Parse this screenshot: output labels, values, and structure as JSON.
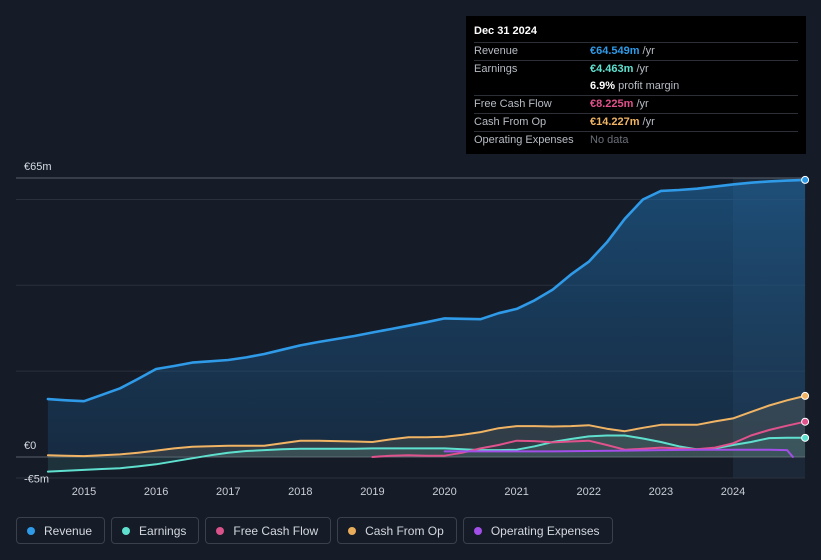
{
  "tooltip": {
    "date": "Dec 31 2024",
    "rows": [
      {
        "label": "Revenue",
        "value": "€64.549m",
        "unit": "/yr",
        "color": "#2f9ae8"
      },
      {
        "label": "Earnings",
        "value": "€4.463m",
        "unit": "/yr",
        "color": "#5fe0cf"
      },
      {
        "label": "",
        "value": "6.9%",
        "unit": "profit margin",
        "color": "#ffffff"
      },
      {
        "label": "Free Cash Flow",
        "value": "€8.225m",
        "unit": "/yr",
        "color": "#e0528c"
      },
      {
        "label": "Cash From Op",
        "value": "€14.227m",
        "unit": "/yr",
        "color": "#f0b464"
      },
      {
        "label": "Operating Expenses",
        "value": "No data",
        "unit": "",
        "color": "#6b7078"
      }
    ]
  },
  "legend": [
    {
      "label": "Revenue",
      "color": "#2f9ae8"
    },
    {
      "label": "Earnings",
      "color": "#5fe0cf"
    },
    {
      "label": "Free Cash Flow",
      "color": "#d9528a"
    },
    {
      "label": "Cash From Op",
      "color": "#e8ac5a"
    },
    {
      "label": "Operating Expenses",
      "color": "#a24ee8"
    }
  ],
  "chart_data": {
    "type": "line",
    "y_unit": "€m",
    "ylim": [
      -5,
      65
    ],
    "y_tick_labels": [
      {
        "value": 65,
        "label": "€65m"
      },
      {
        "value": 0,
        "label": "€0"
      },
      {
        "value": -5,
        "label": "-€5m"
      }
    ],
    "xlim": [
      2014.5,
      2025.0
    ],
    "x_ticks": [
      2015,
      2016,
      2017,
      2018,
      2019,
      2020,
      2021,
      2022,
      2023,
      2024
    ],
    "x_tick_labels": [
      "2015",
      "2016",
      "2017",
      "2018",
      "2019",
      "2020",
      "2021",
      "2022",
      "2023",
      "2024"
    ],
    "highlight_start": 2024.0,
    "series": [
      {
        "name": "Revenue",
        "color": "#2f9ae8",
        "fill": true,
        "points": [
          [
            2014.5,
            13.5
          ],
          [
            2014.75,
            13.2
          ],
          [
            2015.0,
            13.0
          ],
          [
            2015.25,
            14.5
          ],
          [
            2015.5,
            16.0
          ],
          [
            2015.75,
            18.2
          ],
          [
            2016.0,
            20.5
          ],
          [
            2016.25,
            21.2
          ],
          [
            2016.5,
            22.0
          ],
          [
            2016.75,
            22.3
          ],
          [
            2017.0,
            22.6
          ],
          [
            2017.25,
            23.2
          ],
          [
            2017.5,
            24.0
          ],
          [
            2017.75,
            25.0
          ],
          [
            2018.0,
            26.0
          ],
          [
            2018.25,
            26.8
          ],
          [
            2018.5,
            27.5
          ],
          [
            2018.75,
            28.2
          ],
          [
            2019.0,
            29.0
          ],
          [
            2019.25,
            29.8
          ],
          [
            2019.5,
            30.6
          ],
          [
            2019.75,
            31.4
          ],
          [
            2020.0,
            32.3
          ],
          [
            2020.25,
            32.2
          ],
          [
            2020.5,
            32.1
          ],
          [
            2020.75,
            33.5
          ],
          [
            2021.0,
            34.5
          ],
          [
            2021.25,
            36.5
          ],
          [
            2021.5,
            39.0
          ],
          [
            2021.75,
            42.5
          ],
          [
            2022.0,
            45.5
          ],
          [
            2022.25,
            50.0
          ],
          [
            2022.5,
            55.5
          ],
          [
            2022.75,
            60.0
          ],
          [
            2023.0,
            62.0
          ],
          [
            2023.25,
            62.2
          ],
          [
            2023.5,
            62.5
          ],
          [
            2023.75,
            63.0
          ],
          [
            2024.0,
            63.5
          ],
          [
            2024.25,
            63.9
          ],
          [
            2024.5,
            64.2
          ],
          [
            2024.75,
            64.4
          ],
          [
            2025.0,
            64.549
          ]
        ]
      },
      {
        "name": "Earnings",
        "color": "#5fe0cf",
        "fill": true,
        "points": [
          [
            2014.5,
            -3.4
          ],
          [
            2014.75,
            -3.2
          ],
          [
            2015.0,
            -3.0
          ],
          [
            2015.25,
            -2.8
          ],
          [
            2015.5,
            -2.6
          ],
          [
            2015.75,
            -2.2
          ],
          [
            2016.0,
            -1.7
          ],
          [
            2016.25,
            -1.0
          ],
          [
            2016.5,
            -0.3
          ],
          [
            2016.75,
            0.4
          ],
          [
            2017.0,
            1.0
          ],
          [
            2017.25,
            1.4
          ],
          [
            2017.5,
            1.6
          ],
          [
            2017.75,
            1.8
          ],
          [
            2018.0,
            1.9
          ],
          [
            2018.25,
            1.9
          ],
          [
            2018.5,
            1.9
          ],
          [
            2018.75,
            1.9
          ],
          [
            2019.0,
            2.0
          ],
          [
            2019.25,
            2.0
          ],
          [
            2019.5,
            2.0
          ],
          [
            2019.75,
            2.0
          ],
          [
            2020.0,
            2.0
          ],
          [
            2020.25,
            1.8
          ],
          [
            2020.5,
            1.6
          ],
          [
            2020.75,
            1.6
          ],
          [
            2021.0,
            1.7
          ],
          [
            2021.25,
            2.5
          ],
          [
            2021.5,
            3.5
          ],
          [
            2021.75,
            4.2
          ],
          [
            2022.0,
            4.8
          ],
          [
            2022.25,
            5.0
          ],
          [
            2022.5,
            5.0
          ],
          [
            2022.75,
            4.3
          ],
          [
            2023.0,
            3.5
          ],
          [
            2023.25,
            2.5
          ],
          [
            2023.5,
            1.8
          ],
          [
            2023.75,
            2.0
          ],
          [
            2024.0,
            2.8
          ],
          [
            2024.25,
            3.5
          ],
          [
            2024.5,
            4.4
          ],
          [
            2024.75,
            4.463
          ],
          [
            2025.0,
            4.463
          ]
        ]
      },
      {
        "name": "Free Cash Flow",
        "color": "#e0528c",
        "fill": false,
        "points": [
          [
            2019.0,
            0.0
          ],
          [
            2019.25,
            0.3
          ],
          [
            2019.5,
            0.4
          ],
          [
            2019.75,
            0.3
          ],
          [
            2020.0,
            0.3
          ],
          [
            2020.25,
            1.0
          ],
          [
            2020.5,
            2.0
          ],
          [
            2020.75,
            2.8
          ],
          [
            2021.0,
            3.8
          ],
          [
            2021.25,
            3.7
          ],
          [
            2021.5,
            3.4
          ],
          [
            2021.75,
            3.6
          ],
          [
            2022.0,
            3.8
          ],
          [
            2022.25,
            2.8
          ],
          [
            2022.5,
            1.7
          ],
          [
            2022.75,
            1.9
          ],
          [
            2023.0,
            2.2
          ],
          [
            2023.25,
            2.0
          ],
          [
            2023.5,
            1.8
          ],
          [
            2023.75,
            2.2
          ],
          [
            2024.0,
            3.2
          ],
          [
            2024.25,
            5.0
          ],
          [
            2024.5,
            6.3
          ],
          [
            2024.75,
            7.3
          ],
          [
            2025.0,
            8.225
          ]
        ]
      },
      {
        "name": "Cash From Op",
        "color": "#f0b464",
        "fill": true,
        "points": [
          [
            2014.5,
            0.4
          ],
          [
            2014.75,
            0.3
          ],
          [
            2015.0,
            0.2
          ],
          [
            2015.25,
            0.4
          ],
          [
            2015.5,
            0.6
          ],
          [
            2015.75,
            1.0
          ],
          [
            2016.0,
            1.5
          ],
          [
            2016.25,
            2.0
          ],
          [
            2016.5,
            2.4
          ],
          [
            2016.75,
            2.5
          ],
          [
            2017.0,
            2.6
          ],
          [
            2017.25,
            2.6
          ],
          [
            2017.5,
            2.6
          ],
          [
            2017.75,
            3.2
          ],
          [
            2018.0,
            3.8
          ],
          [
            2018.25,
            3.8
          ],
          [
            2018.5,
            3.7
          ],
          [
            2018.75,
            3.6
          ],
          [
            2019.0,
            3.5
          ],
          [
            2019.25,
            4.1
          ],
          [
            2019.5,
            4.6
          ],
          [
            2019.75,
            4.6
          ],
          [
            2020.0,
            4.7
          ],
          [
            2020.25,
            5.2
          ],
          [
            2020.5,
            5.8
          ],
          [
            2020.75,
            6.7
          ],
          [
            2021.0,
            7.2
          ],
          [
            2021.25,
            7.2
          ],
          [
            2021.5,
            7.1
          ],
          [
            2021.75,
            7.2
          ],
          [
            2022.0,
            7.4
          ],
          [
            2022.25,
            6.6
          ],
          [
            2022.5,
            6.0
          ],
          [
            2022.75,
            6.8
          ],
          [
            2023.0,
            7.5
          ],
          [
            2023.25,
            7.5
          ],
          [
            2023.5,
            7.5
          ],
          [
            2023.75,
            8.3
          ],
          [
            2024.0,
            9.0
          ],
          [
            2024.25,
            10.5
          ],
          [
            2024.5,
            12.0
          ],
          [
            2024.75,
            13.2
          ],
          [
            2025.0,
            14.227
          ]
        ]
      },
      {
        "name": "Operating Expenses",
        "color": "#a24ee8",
        "fill": false,
        "points": [
          [
            2020.0,
            1.3
          ],
          [
            2020.5,
            1.3
          ],
          [
            2021.0,
            1.3
          ],
          [
            2021.5,
            1.3
          ],
          [
            2022.0,
            1.4
          ],
          [
            2022.5,
            1.5
          ],
          [
            2023.0,
            1.6
          ],
          [
            2023.5,
            1.7
          ],
          [
            2024.0,
            1.7
          ],
          [
            2024.5,
            1.7
          ],
          [
            2024.75,
            1.6
          ],
          [
            2024.83,
            0.0
          ]
        ]
      }
    ]
  }
}
